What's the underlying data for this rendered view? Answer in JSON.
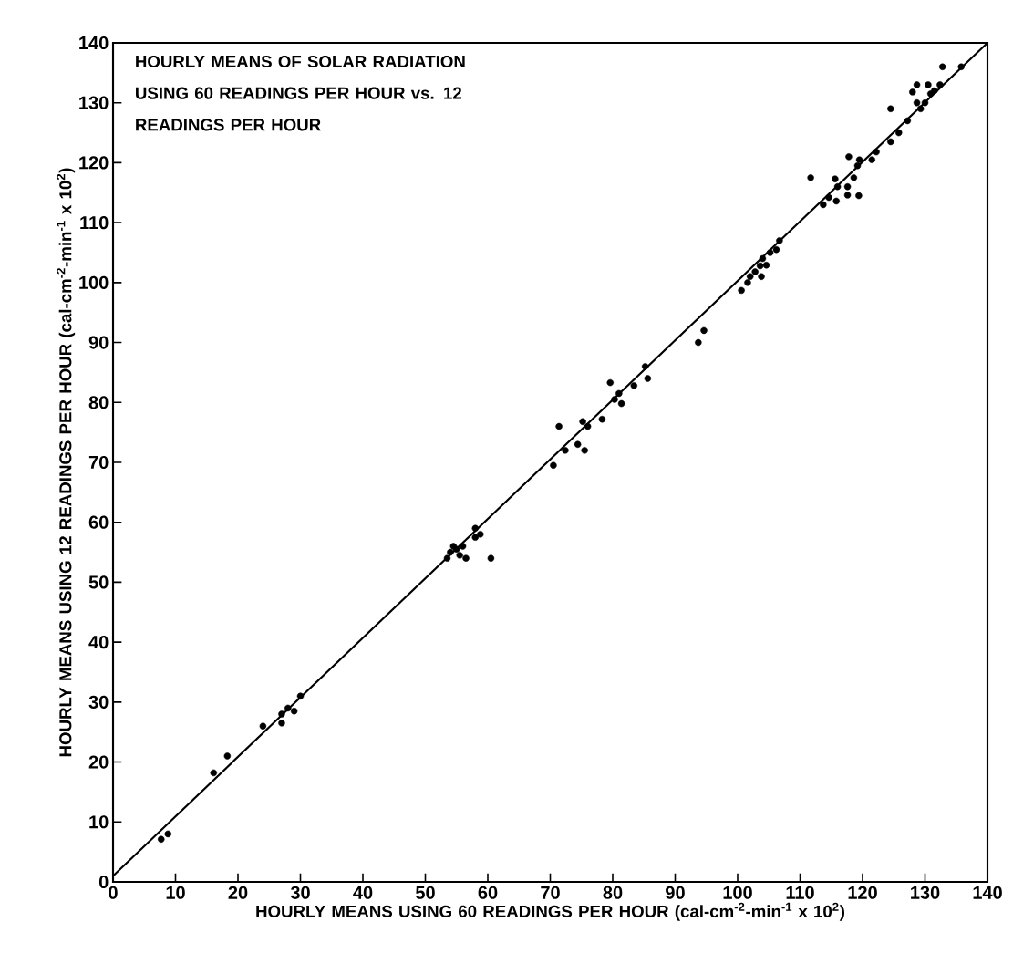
{
  "chart_data": {
    "type": "scatter",
    "title": "HOURLY MEANS OF SOLAR RADIATION USING  60 READINGS PER HOUR  vs. 12 READINGS PER HOUR",
    "xlabel": "HOURLY MEANS USING 60 READINGS PER HOUR (cal-cm$^{-2}$-min$^{-1}$ x 10$^{2}$)",
    "ylabel": "HOURLY MEANS USING 12 READINGS PER HOUR (cal-cm$^{-2}$-min$^{-1}$ x 10$^{2}$)",
    "xlim": [
      0,
      140
    ],
    "ylim": [
      0,
      140
    ],
    "xticks": [
      0,
      10,
      20,
      30,
      40,
      50,
      60,
      70,
      80,
      90,
      100,
      110,
      120,
      130,
      140
    ],
    "yticks": [
      0,
      10,
      20,
      30,
      40,
      50,
      60,
      70,
      80,
      90,
      100,
      110,
      120,
      130,
      140
    ],
    "grid": false,
    "series": [
      {
        "color": "#000000",
        "marker": "circle",
        "x": [
          7.7,
          8.8,
          16.1,
          18.3,
          24,
          27,
          27,
          28,
          29,
          30,
          53.5,
          54,
          54.5,
          55,
          55.5,
          56,
          56.5,
          58,
          58,
          58.8,
          60.5,
          70.5,
          71.4,
          72.4,
          74.4,
          75.5,
          75.2,
          76,
          78.3,
          79.6,
          80.3,
          81,
          81.4,
          83.4,
          85.2,
          85.6,
          93.7,
          94.6,
          100.6,
          101.6,
          102,
          102.8,
          103.6,
          103.8,
          104,
          104.6,
          105.2,
          106.2,
          106.7,
          111.7,
          113.7,
          114.6,
          115.6,
          115.8,
          116,
          117.6,
          117.6,
          117.8,
          118.6,
          119.2,
          119.4,
          119.5,
          121.5,
          122.2,
          124.5,
          124.5,
          125.8,
          127.2,
          128,
          128.7,
          128.7,
          129.3,
          130,
          130.5,
          130.9,
          131.5,
          132.4,
          132.8,
          135.8
        ],
        "values": [
          7.1,
          8.0,
          18.2,
          21.0,
          26,
          26.5,
          28,
          29,
          28.5,
          31,
          54,
          55,
          56,
          55.5,
          54.5,
          56,
          54,
          57.5,
          59,
          58,
          54,
          69.5,
          76,
          72,
          73,
          72,
          76.8,
          76,
          77.2,
          83.3,
          80.5,
          81.5,
          79.8,
          82.8,
          86,
          84,
          90,
          92,
          98.7,
          100,
          101,
          101.8,
          102.8,
          101,
          104,
          102.9,
          105,
          105.5,
          107,
          117.5,
          113,
          114.2,
          117.3,
          113.6,
          116,
          114.6,
          116,
          121,
          117.5,
          119.5,
          114.5,
          120.5,
          120.5,
          121.8,
          123.5,
          129,
          125,
          127,
          131.8,
          130,
          133,
          129,
          130,
          133,
          131.5,
          132,
          133,
          136,
          136
        ]
      },
      {
        "type": "line",
        "color": "#000000",
        "marker": "none",
        "line_style": "solid",
        "x": [
          0,
          140
        ],
        "values": [
          1,
          140
        ]
      }
    ]
  }
}
